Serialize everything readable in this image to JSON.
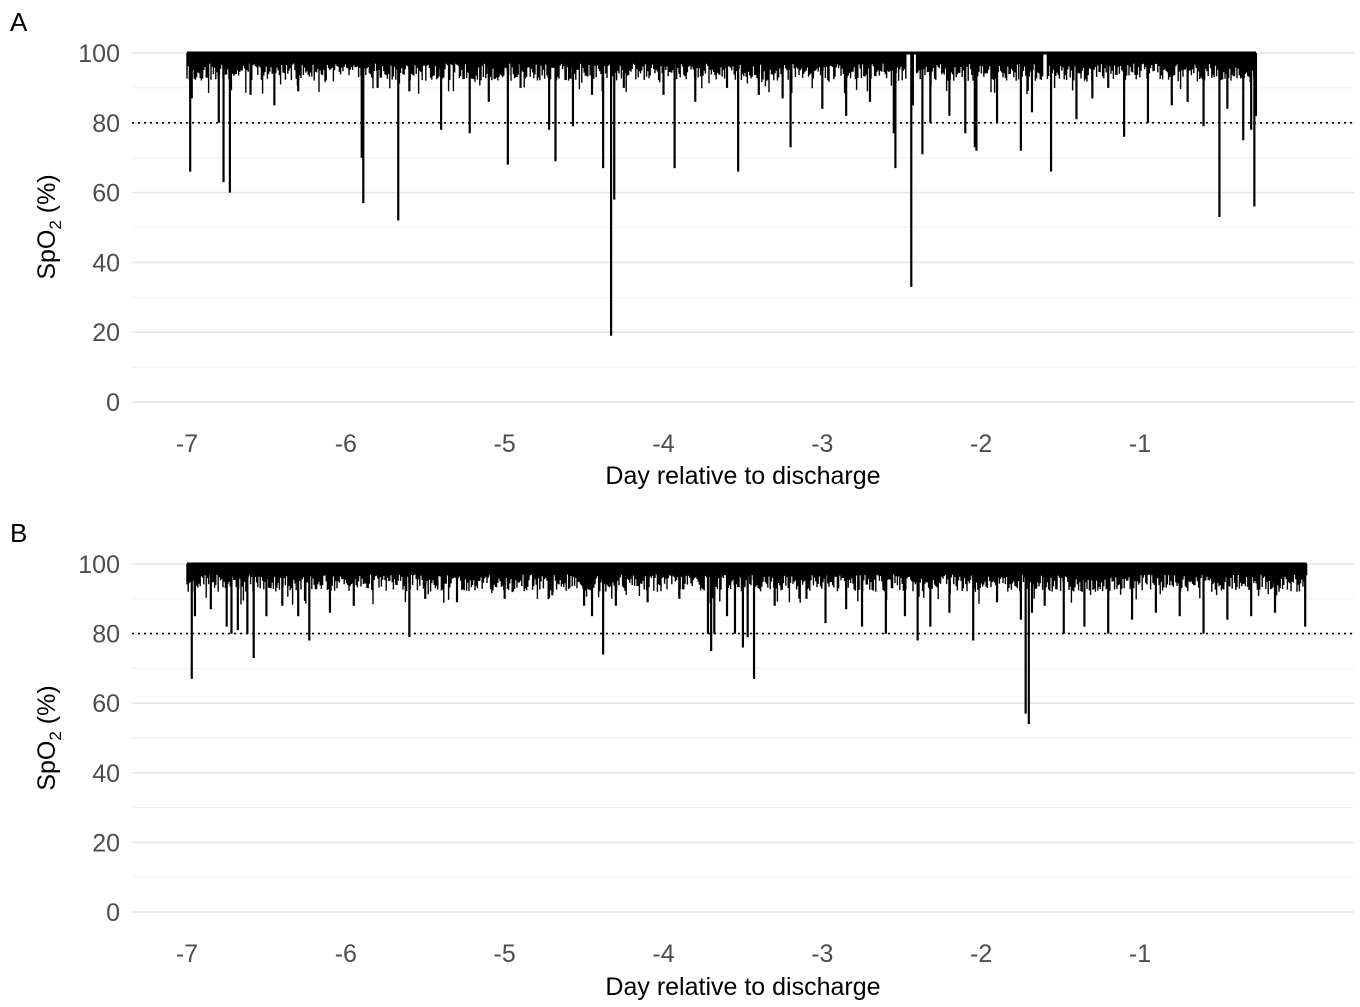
{
  "chart_data": [
    {
      "type": "line",
      "panel_label": "A",
      "xlabel": "Day relative to discharge",
      "ylabel_prefix": "SpO",
      "ylabel_sub": "2",
      "ylabel_suffix": " (%)",
      "xlim": [
        -7.05,
        1.35
      ],
      "ylim": [
        0,
        100
      ],
      "x_ticks": [
        "-7",
        "-6",
        "-5",
        "-4",
        "-3",
        "-2",
        "-1"
      ],
      "x_tick_values": [
        -7,
        -6,
        -5,
        -4,
        -3,
        -2,
        -1
      ],
      "y_ticks": [
        "0",
        "20",
        "40",
        "60",
        "80",
        "100"
      ],
      "y_tick_values": [
        0,
        20,
        40,
        60,
        80,
        100
      ],
      "grid": true,
      "reference_line": {
        "y": 80,
        "style": "dotted"
      },
      "x_range": [
        -7.0,
        -0.27
      ],
      "baseline": 100,
      "gaps": [
        [
          -2.47,
          -2.41
        ],
        [
          -1.61,
          -1.59
        ]
      ],
      "dips": [
        [
          -6.98,
          66
        ],
        [
          -6.97,
          87
        ],
        [
          -6.8,
          80
        ],
        [
          -6.77,
          63
        ],
        [
          -6.73,
          60
        ],
        [
          -6.6,
          88
        ],
        [
          -6.45,
          85
        ],
        [
          -6.3,
          89
        ],
        [
          -5.9,
          70
        ],
        [
          -5.89,
          57
        ],
        [
          -5.8,
          90
        ],
        [
          -5.67,
          52
        ],
        [
          -5.6,
          89
        ],
        [
          -5.4,
          78
        ],
        [
          -5.22,
          77
        ],
        [
          -5.1,
          86
        ],
        [
          -4.98,
          68
        ],
        [
          -4.9,
          90
        ],
        [
          -4.72,
          78
        ],
        [
          -4.68,
          69
        ],
        [
          -4.57,
          79
        ],
        [
          -4.45,
          88
        ],
        [
          -4.38,
          67
        ],
        [
          -4.33,
          19
        ],
        [
          -4.31,
          58
        ],
        [
          -4.25,
          90
        ],
        [
          -4.0,
          88
        ],
        [
          -3.93,
          67
        ],
        [
          -3.8,
          86
        ],
        [
          -3.6,
          90
        ],
        [
          -3.53,
          66
        ],
        [
          -3.4,
          88
        ],
        [
          -3.25,
          87
        ],
        [
          -3.2,
          73
        ],
        [
          -3.0,
          84
        ],
        [
          -2.85,
          82
        ],
        [
          -2.7,
          86
        ],
        [
          -2.55,
          77
        ],
        [
          -2.54,
          67
        ],
        [
          -2.44,
          33
        ],
        [
          -2.43,
          85
        ],
        [
          -2.37,
          71
        ],
        [
          -2.32,
          80
        ],
        [
          -2.2,
          82
        ],
        [
          -2.1,
          77
        ],
        [
          -2.04,
          73
        ],
        [
          -2.03,
          72
        ],
        [
          -1.9,
          80
        ],
        [
          -1.75,
          72
        ],
        [
          -1.68,
          83
        ],
        [
          -1.56,
          66
        ],
        [
          -1.4,
          81
        ],
        [
          -1.3,
          87
        ],
        [
          -1.2,
          90
        ],
        [
          -1.1,
          76
        ],
        [
          -0.95,
          80
        ],
        [
          -0.8,
          85
        ],
        [
          -0.7,
          86
        ],
        [
          -0.6,
          79
        ],
        [
          -0.5,
          53
        ],
        [
          -0.45,
          84
        ],
        [
          -0.35,
          75
        ],
        [
          -0.3,
          78
        ],
        [
          -0.28,
          56
        ],
        [
          -0.27,
          82
        ]
      ]
    },
    {
      "type": "line",
      "panel_label": "B",
      "xlabel": "Day relative to discharge",
      "ylabel_prefix": "SpO",
      "ylabel_sub": "2",
      "ylabel_suffix": " (%)",
      "xlim": [
        -7.05,
        1.35
      ],
      "ylim": [
        0,
        100
      ],
      "x_ticks": [
        "-7",
        "-6",
        "-5",
        "-4",
        "-3",
        "-2",
        "-1"
      ],
      "x_tick_values": [
        -7,
        -6,
        -5,
        -4,
        -3,
        -2,
        -1
      ],
      "y_ticks": [
        "0",
        "20",
        "40",
        "60",
        "80",
        "100"
      ],
      "y_tick_values": [
        0,
        20,
        40,
        60,
        80,
        100
      ],
      "grid": true,
      "reference_line": {
        "y": 80,
        "style": "dotted"
      },
      "x_range": [
        -7.0,
        0.05
      ],
      "baseline": 100,
      "gaps": [],
      "dips": [
        [
          -6.97,
          67
        ],
        [
          -6.95,
          85
        ],
        [
          -6.85,
          87
        ],
        [
          -6.75,
          82
        ],
        [
          -6.72,
          80
        ],
        [
          -6.68,
          81
        ],
        [
          -6.62,
          80
        ],
        [
          -6.58,
          73
        ],
        [
          -6.5,
          85
        ],
        [
          -6.4,
          88
        ],
        [
          -6.3,
          85
        ],
        [
          -6.23,
          78
        ],
        [
          -6.1,
          86
        ],
        [
          -5.95,
          88
        ],
        [
          -5.6,
          79
        ],
        [
          -5.5,
          90
        ],
        [
          -5.3,
          89
        ],
        [
          -5.0,
          90
        ],
        [
          -4.7,
          91
        ],
        [
          -4.5,
          88
        ],
        [
          -4.45,
          85
        ],
        [
          -4.38,
          74
        ],
        [
          -4.3,
          88
        ],
        [
          -4.1,
          89
        ],
        [
          -3.9,
          90
        ],
        [
          -3.72,
          80
        ],
        [
          -3.7,
          75
        ],
        [
          -3.68,
          80
        ],
        [
          -3.6,
          85
        ],
        [
          -3.55,
          80
        ],
        [
          -3.5,
          76
        ],
        [
          -3.47,
          79
        ],
        [
          -3.43,
          67
        ],
        [
          -3.3,
          88
        ],
        [
          -3.1,
          90
        ],
        [
          -2.98,
          83
        ],
        [
          -2.85,
          87
        ],
        [
          -2.75,
          82
        ],
        [
          -2.6,
          80
        ],
        [
          -2.48,
          85
        ],
        [
          -2.4,
          78
        ],
        [
          -2.32,
          82
        ],
        [
          -2.2,
          86
        ],
        [
          -2.05,
          78
        ],
        [
          -1.9,
          89
        ],
        [
          -1.75,
          84
        ],
        [
          -1.72,
          57
        ],
        [
          -1.7,
          54
        ],
        [
          -1.68,
          86
        ],
        [
          -1.6,
          88
        ],
        [
          -1.48,
          80
        ],
        [
          -1.35,
          82
        ],
        [
          -1.2,
          80
        ],
        [
          -1.05,
          84
        ],
        [
          -0.9,
          86
        ],
        [
          -0.75,
          85
        ],
        [
          -0.6,
          80
        ],
        [
          -0.45,
          84
        ],
        [
          -0.3,
          85
        ],
        [
          -0.15,
          86
        ],
        [
          0.04,
          82
        ]
      ]
    }
  ]
}
